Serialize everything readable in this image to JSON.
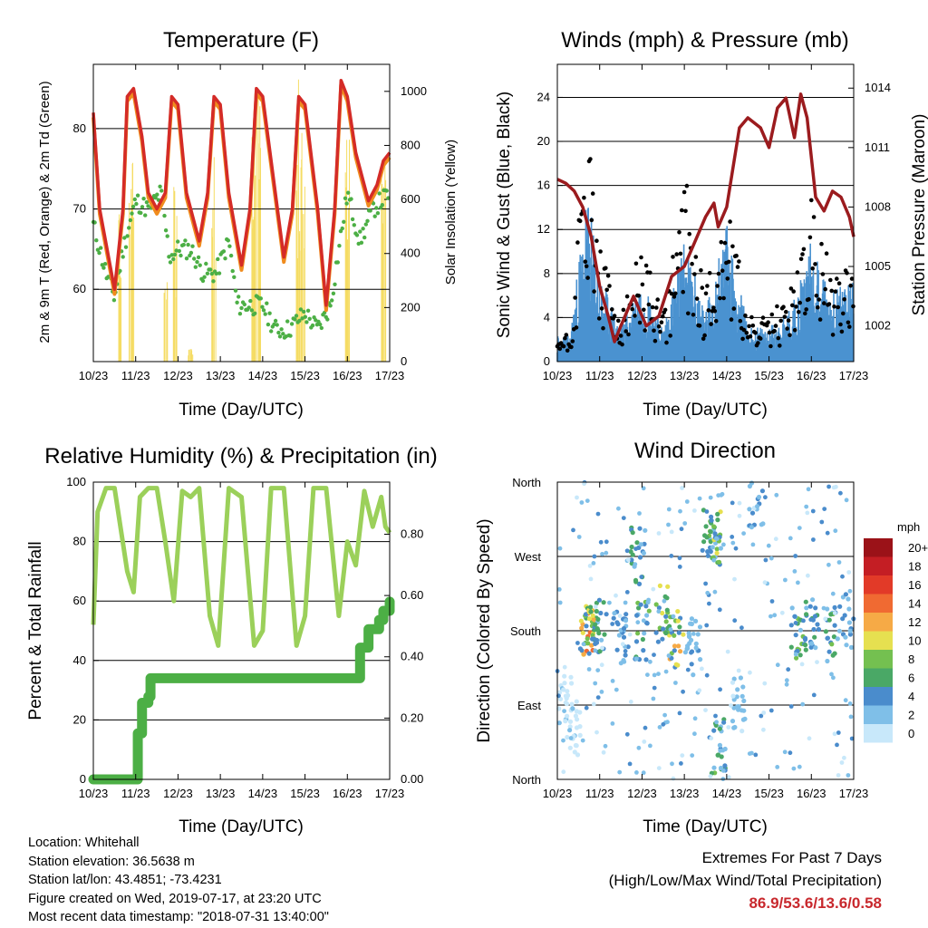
{
  "panels": {
    "temperature": {
      "title": "Temperature (F)",
      "ylabel_left": "2m & 9m T (Red, Orange) & 2m Td (Green)",
      "ylabel_right": "Solar Insolation (Yellow)",
      "xlabel": "Time (Day/UTC)"
    },
    "winds": {
      "title": "Winds (mph) & Pressure (mb)",
      "ylabel_left": "Sonic Wind & Gust (Blue, Black)",
      "ylabel_right": "Station Pressure (Maroon)",
      "xlabel": "Time (Day/UTC)"
    },
    "humidity": {
      "title": "Relative Humidity (%) & Precipitation (in)",
      "ylabel_left": "Percent & Total Rainfall",
      "xlabel": "Time (Day/UTC)"
    },
    "direction": {
      "title": "Wind Direction",
      "ylabel_left": "Direction (Colored By Speed)",
      "xlabel": "Time (Day/UTC)",
      "legend_title": "mph"
    }
  },
  "info": {
    "location": "Location: Whitehall",
    "elevation": "Station elevation: 36.5638 m",
    "latlon": "Station lat/lon: 43.4851; -73.4231",
    "created": "Figure created on Wed, 2019-07-17, at 23:20 UTC",
    "timestamp": "Most recent data timestamp: \"2018-07-31 13:40:00\""
  },
  "extremes": {
    "heading": "Extremes For Past 7 Days",
    "subheading": "(High/Low/Max Wind/Total Precipitation)",
    "values": "86.9/53.6/13.6/0.58"
  },
  "colors": {
    "t2m": "#d42b27",
    "t9m": "#f08c1e",
    "td2m": "#4caf45",
    "solar": "#f5dc64",
    "wind": "#4a92d0",
    "gust": "#000000",
    "pressure": "#9b1b1e",
    "rh": "#9bd05a",
    "precip": "#4caf45",
    "highlight": "#c8282d"
  },
  "chart_data": [
    {
      "type": "line",
      "title": "Temperature (F)",
      "xlabel": "Time (Day/UTC)",
      "ylabel": "2m & 9m T (Red, Orange) & 2m Td (Green)",
      "y2label": "Solar Insolation (Yellow)",
      "ylim": [
        51,
        88
      ],
      "y2lim": [
        0,
        1100
      ],
      "yticks": [
        60,
        70,
        80
      ],
      "y2ticks": [
        0,
        200,
        400,
        600,
        800,
        1000
      ],
      "xticks": [
        "10/23",
        "11/23",
        "12/23",
        "13/23",
        "14/23",
        "15/23",
        "16/23",
        "17/23"
      ],
      "grid": "horizontal",
      "series": [
        {
          "name": "2m T",
          "color": "#d42b27",
          "x": [
            0,
            0.15,
            0.5,
            0.7,
            0.8,
            0.95,
            1.15,
            1.3,
            1.5,
            1.7,
            1.85,
            2.0,
            2.2,
            2.5,
            2.7,
            2.85,
            3.0,
            3.2,
            3.5,
            3.7,
            3.85,
            4.0,
            4.2,
            4.5,
            4.7,
            4.85,
            5.0,
            5.3,
            5.5,
            5.7,
            5.85,
            6.0,
            6.2,
            6.5,
            6.7,
            6.85,
            7.0
          ],
          "values": [
            82,
            70,
            60,
            70,
            84,
            85,
            79,
            72,
            70,
            72,
            84,
            83,
            72,
            66,
            72,
            84,
            83,
            72,
            63,
            70,
            85,
            84,
            76,
            64,
            70,
            84,
            83,
            70,
            58,
            70,
            86,
            84,
            77,
            71,
            73,
            76,
            77
          ]
        },
        {
          "name": "2m Td",
          "color": "#4caf45",
          "x": [
            0,
            0.3,
            0.5,
            0.7,
            1.0,
            1.3,
            1.6,
            1.8,
            2.0,
            2.3,
            2.6,
            2.9,
            3.2,
            3.4,
            3.7,
            4.0,
            4.3,
            4.6,
            5.0,
            5.3,
            5.6,
            6.0,
            6.3,
            6.6,
            7.0
          ],
          "values": [
            68,
            62,
            59,
            65,
            71,
            70,
            72,
            64,
            65,
            65,
            62,
            62,
            66,
            58,
            58,
            58,
            55,
            55,
            57,
            55,
            58,
            72,
            66,
            70,
            72
          ]
        },
        {
          "name": "Solar Insolation",
          "color": "#f5dc64",
          "axis": "right",
          "x": [
            0.05,
            0.3,
            0.65,
            0.9,
            1.7,
            1.95,
            2.3,
            2.85,
            3.45,
            3.8,
            3.9,
            4.55,
            4.85,
            4.95,
            5.6,
            6.0,
            6.75,
            6.85
          ],
          "values": [
            0,
            0,
            550,
            950,
            300,
            650,
            50,
            850,
            0,
            900,
            1000,
            0,
            1050,
            900,
            0,
            850,
            0,
            900
          ]
        }
      ]
    },
    {
      "type": "line",
      "title": "Winds (mph) & Pressure (mb)",
      "xlabel": "Time (Day/UTC)",
      "ylabel": "Sonic Wind & Gust (Blue, Black)",
      "y2label": "Station Pressure (Maroon)",
      "ylim": [
        0,
        27
      ],
      "y2lim": [
        1000.2,
        1015.2
      ],
      "yticks": [
        0,
        4,
        8,
        12,
        16,
        20,
        24
      ],
      "y2ticks": [
        1002,
        1005,
        1008,
        1011,
        1014
      ],
      "xticks": [
        "10/23",
        "11/23",
        "12/23",
        "13/23",
        "14/23",
        "15/23",
        "16/23",
        "17/23"
      ],
      "series": [
        {
          "name": "Sonic Wind",
          "color": "#4a92d0",
          "x": [
            0,
            0.3,
            0.7,
            1.0,
            1.5,
            2.0,
            2.5,
            3.0,
            3.5,
            4.0,
            4.5,
            5.0,
            5.5,
            6.0,
            6.5,
            7.0
          ],
          "values": [
            1.5,
            1.5,
            10,
            5,
            2,
            5,
            2,
            7,
            3,
            8,
            2,
            2,
            3,
            7,
            4,
            5
          ]
        },
        {
          "name": "Gust",
          "color": "#000000",
          "x": [
            0,
            0.3,
            0.7,
            1.0,
            1.5,
            2.0,
            2.5,
            3.0,
            3.5,
            4.0,
            4.5,
            5.0,
            5.5,
            6.0,
            6.5,
            7.0
          ],
          "values": [
            2,
            2,
            18,
            8,
            3,
            8,
            3,
            13,
            5,
            12,
            3,
            3,
            5,
            11,
            6,
            8
          ]
        },
        {
          "name": "Station Pressure",
          "color": "#9b1b1e",
          "axis": "right",
          "x": [
            0,
            0.2,
            0.4,
            0.6,
            0.8,
            1.0,
            1.2,
            1.35,
            1.5,
            1.8,
            2.1,
            2.4,
            2.7,
            3.0,
            3.3,
            3.5,
            3.7,
            3.8,
            4.0,
            4.3,
            4.5,
            4.8,
            5.0,
            5.2,
            5.4,
            5.6,
            5.75,
            5.9,
            6.1,
            6.3,
            6.5,
            6.7,
            6.9,
            7.0
          ],
          "values": [
            1009.4,
            1009.2,
            1008.8,
            1008,
            1006.5,
            1004,
            1002.5,
            1001.2,
            1002,
            1003.5,
            1002,
            1002.5,
            1004.5,
            1005,
            1006.5,
            1007.5,
            1008.2,
            1007,
            1008,
            1012,
            1012.5,
            1012,
            1011,
            1013,
            1013.5,
            1011.5,
            1013.7,
            1012.5,
            1008.5,
            1007.8,
            1008.8,
            1008.5,
            1007.5,
            1006.5
          ]
        }
      ]
    },
    {
      "type": "line",
      "title": "Relative Humidity (%) & Precipitation (in)",
      "xlabel": "Time (Day/UTC)",
      "ylabel": "Percent & Total Rainfall",
      "ylim": [
        0,
        100
      ],
      "y2lim": [
        0,
        0.97
      ],
      "yticks": [
        0,
        20,
        40,
        60,
        80,
        100
      ],
      "y2ticks": [
        0.0,
        0.2,
        0.4,
        0.6,
        0.8
      ],
      "xticks": [
        "10/23",
        "11/23",
        "12/23",
        "13/23",
        "14/23",
        "15/23",
        "16/23",
        "17/23"
      ],
      "series": [
        {
          "name": "Relative Humidity",
          "color": "#9bd05a",
          "x": [
            0,
            0.1,
            0.3,
            0.5,
            0.8,
            0.95,
            1.1,
            1.3,
            1.5,
            1.7,
            1.9,
            2.1,
            2.3,
            2.5,
            2.75,
            2.95,
            3.2,
            3.5,
            3.8,
            4.0,
            4.2,
            4.5,
            4.8,
            5.0,
            5.2,
            5.5,
            5.8,
            6.0,
            6.2,
            6.4,
            6.6,
            6.8,
            6.9,
            7.0
          ],
          "values": [
            52,
            90,
            98,
            98,
            70,
            63,
            95,
            98,
            98,
            80,
            60,
            97,
            95,
            98,
            55,
            45,
            98,
            95,
            45,
            50,
            98,
            98,
            45,
            55,
            98,
            98,
            55,
            80,
            72,
            97,
            85,
            95,
            85,
            83
          ]
        },
        {
          "name": "Total Precipitation",
          "color": "#4caf45",
          "axis": "right",
          "x": [
            0,
            0.9,
            1.05,
            1.15,
            1.3,
            1.35,
            6.2,
            6.3,
            6.5,
            6.75,
            6.85,
            7.0
          ],
          "values": [
            0,
            0,
            0.15,
            0.25,
            0.27,
            0.33,
            0.33,
            0.43,
            0.49,
            0.52,
            0.55,
            0.58
          ]
        }
      ]
    },
    {
      "type": "scatter",
      "title": "Wind Direction",
      "xlabel": "Time (Day/UTC)",
      "ylabel": "Direction (Colored By Speed)",
      "ylim": [
        0,
        360
      ],
      "yticks": [
        "North",
        "East",
        "South",
        "West",
        "North"
      ],
      "xticks": [
        "10/23",
        "11/23",
        "12/23",
        "13/23",
        "14/23",
        "15/23",
        "16/23",
        "17/23"
      ],
      "colorbar": {
        "title": "mph",
        "labels": [
          "0",
          "2",
          "4",
          "6",
          "8",
          "10",
          "12",
          "14",
          "16",
          "18",
          "20+"
        ],
        "colors": [
          "#c8e8fa",
          "#7fbfe8",
          "#4a8ccc",
          "#4aa866",
          "#74c050",
          "#e6e050",
          "#f6aa46",
          "#f06a32",
          "#e23a28",
          "#c41e24",
          "#9b1218"
        ]
      },
      "points": [
        {
          "x": 0.2,
          "dir": 90,
          "speed": 1
        },
        {
          "x": 0.4,
          "dir": 60,
          "speed": 1
        },
        {
          "x": 0.7,
          "dir": 180,
          "speed": 13
        },
        {
          "x": 0.75,
          "dir": 175,
          "speed": 11
        },
        {
          "x": 1.0,
          "dir": 185,
          "speed": 6
        },
        {
          "x": 1.5,
          "dir": 170,
          "speed": 4
        },
        {
          "x": 1.9,
          "dir": 270,
          "speed": 6
        },
        {
          "x": 2.0,
          "dir": 180,
          "speed": 8
        },
        {
          "x": 2.5,
          "dir": 200,
          "speed": 9
        },
        {
          "x": 2.8,
          "dir": 170,
          "speed": 10
        },
        {
          "x": 3.2,
          "dir": 160,
          "speed": 3
        },
        {
          "x": 3.6,
          "dir": 300,
          "speed": 7
        },
        {
          "x": 3.7,
          "dir": 290,
          "speed": 8
        },
        {
          "x": 3.8,
          "dir": 40,
          "speed": 6
        },
        {
          "x": 4.3,
          "dir": 90,
          "speed": 2
        },
        {
          "x": 4.7,
          "dir": 340,
          "speed": 3
        },
        {
          "x": 5.7,
          "dir": 180,
          "speed": 7
        },
        {
          "x": 6.0,
          "dir": 185,
          "speed": 5
        },
        {
          "x": 6.5,
          "dir": 175,
          "speed": 6
        },
        {
          "x": 6.9,
          "dir": 190,
          "speed": 4
        }
      ]
    }
  ]
}
